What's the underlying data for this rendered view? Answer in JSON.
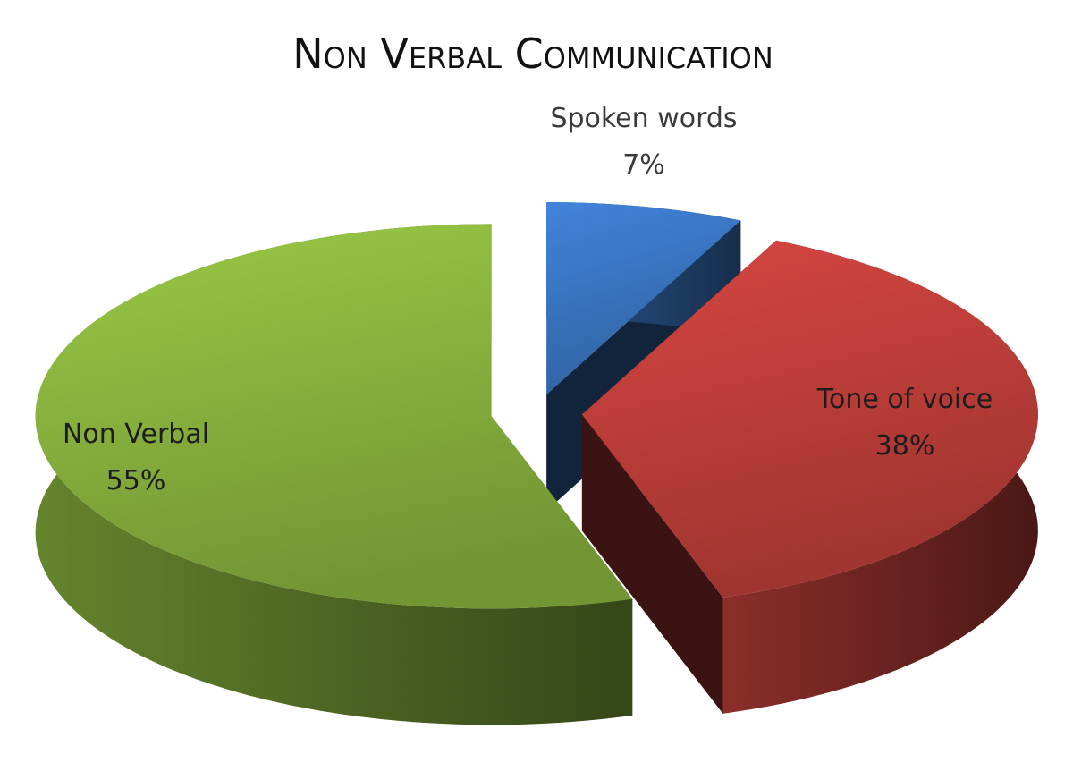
{
  "chart_data": {
    "type": "pie",
    "title": "Non Verbal Communication",
    "categories": [
      "Spoken words",
      "Tone of voice",
      "Non Verbal"
    ],
    "values": [
      7,
      38,
      55
    ],
    "value_labels": [
      "7%",
      "38%",
      "55%"
    ],
    "colors": [
      "#3b78c6",
      "#c3403b",
      "#8cb73f"
    ]
  }
}
